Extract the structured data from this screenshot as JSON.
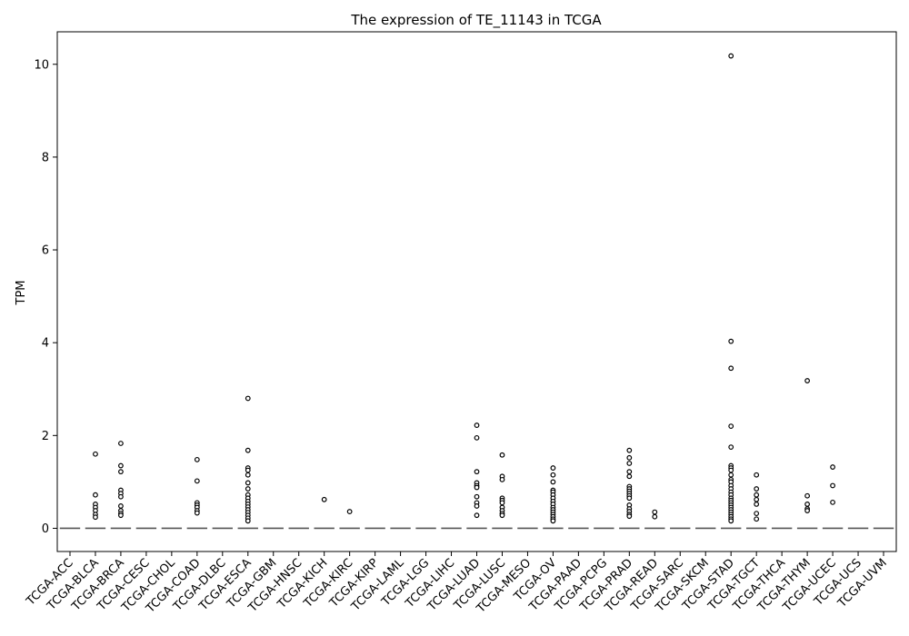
{
  "chart_data": {
    "type": "box",
    "title": "The expression of TE_11143 in TCGA",
    "xlabel": "",
    "ylabel": "TPM",
    "ylim": [
      -0.5,
      10.7
    ],
    "yticks": [
      0,
      2,
      4,
      6,
      8,
      10
    ],
    "grid": false,
    "legend": "none",
    "colors": {
      "median": "#555555",
      "outlier_edge": "#000000",
      "outlier_face": "#ffffff",
      "axis": "#000000"
    },
    "categories": [
      "TCGA-ACC",
      "TCGA-BLCA",
      "TCGA-BRCA",
      "TCGA-CESC",
      "TCGA-CHOL",
      "TCGA-COAD",
      "TCGA-DLBC",
      "TCGA-ESCA",
      "TCGA-GBM",
      "TCGA-HNSC",
      "TCGA-KICH",
      "TCGA-KIRC",
      "TCGA-KIRP",
      "TCGA-LAML",
      "TCGA-LGG",
      "TCGA-LIHC",
      "TCGA-LUAD",
      "TCGA-LUSC",
      "TCGA-MESO",
      "TCGA-OV",
      "TCGA-PAAD",
      "TCGA-PCPG",
      "TCGA-PRAD",
      "TCGA-READ",
      "TCGA-SARC",
      "TCGA-SKCM",
      "TCGA-STAD",
      "TCGA-TGCT",
      "TCGA-THCA",
      "TCGA-THYM",
      "TCGA-UCEC",
      "TCGA-UCS",
      "TCGA-UVM"
    ],
    "medians": [
      0,
      0,
      0,
      0,
      0,
      0,
      0,
      0,
      0,
      0,
      0,
      0,
      0,
      0,
      0,
      0,
      0,
      0,
      0,
      0,
      0,
      0,
      0,
      0,
      0,
      0,
      0,
      0,
      0,
      0,
      0,
      0,
      0
    ],
    "outliers": [
      [],
      [
        1.6,
        0.72,
        0.52,
        0.45,
        0.38,
        0.3,
        0.24
      ],
      [
        1.83,
        1.35,
        1.22,
        0.82,
        0.75,
        0.68,
        0.48,
        0.38,
        0.32,
        0.28
      ],
      [],
      [],
      [
        1.48,
        1.02,
        0.55,
        0.5,
        0.45,
        0.38,
        0.33
      ],
      [],
      [
        2.8,
        1.68,
        1.3,
        1.25,
        1.15,
        0.98,
        0.85,
        0.72,
        0.65,
        0.58,
        0.52,
        0.46,
        0.4,
        0.34,
        0.28,
        0.22,
        0.16
      ],
      [],
      [],
      [
        0.62
      ],
      [
        0.36
      ],
      [],
      [],
      [],
      [],
      [
        2.22,
        1.95,
        1.22,
        0.98,
        0.92,
        0.88,
        0.68,
        0.55,
        0.48,
        0.28
      ],
      [
        1.58,
        1.12,
        1.05,
        0.65,
        0.6,
        0.55,
        0.45,
        0.38,
        0.32,
        0.28
      ],
      [],
      [
        1.3,
        1.15,
        1.0,
        0.82,
        0.78,
        0.72,
        0.65,
        0.58,
        0.52,
        0.45,
        0.4,
        0.35,
        0.3,
        0.25,
        0.2,
        0.16
      ],
      [],
      [],
      [
        1.68,
        1.52,
        1.4,
        1.22,
        1.12,
        0.9,
        0.85,
        0.8,
        0.75,
        0.7,
        0.65,
        0.5,
        0.42,
        0.36,
        0.3,
        0.26
      ],
      [
        0.35,
        0.25
      ],
      [],
      [],
      [
        10.18,
        4.03,
        3.45,
        2.2,
        1.75,
        1.35,
        1.3,
        1.25,
        1.15,
        1.05,
        1.0,
        0.92,
        0.85,
        0.78,
        0.72,
        0.65,
        0.6,
        0.55,
        0.5,
        0.45,
        0.4,
        0.35,
        0.3,
        0.25,
        0.2,
        0.16
      ],
      [
        1.15,
        0.85,
        0.72,
        0.62,
        0.52,
        0.32,
        0.2
      ],
      [],
      [
        3.18,
        0.7,
        0.52,
        0.42,
        0.38
      ],
      [
        1.32,
        0.92,
        0.56
      ],
      [],
      []
    ]
  }
}
